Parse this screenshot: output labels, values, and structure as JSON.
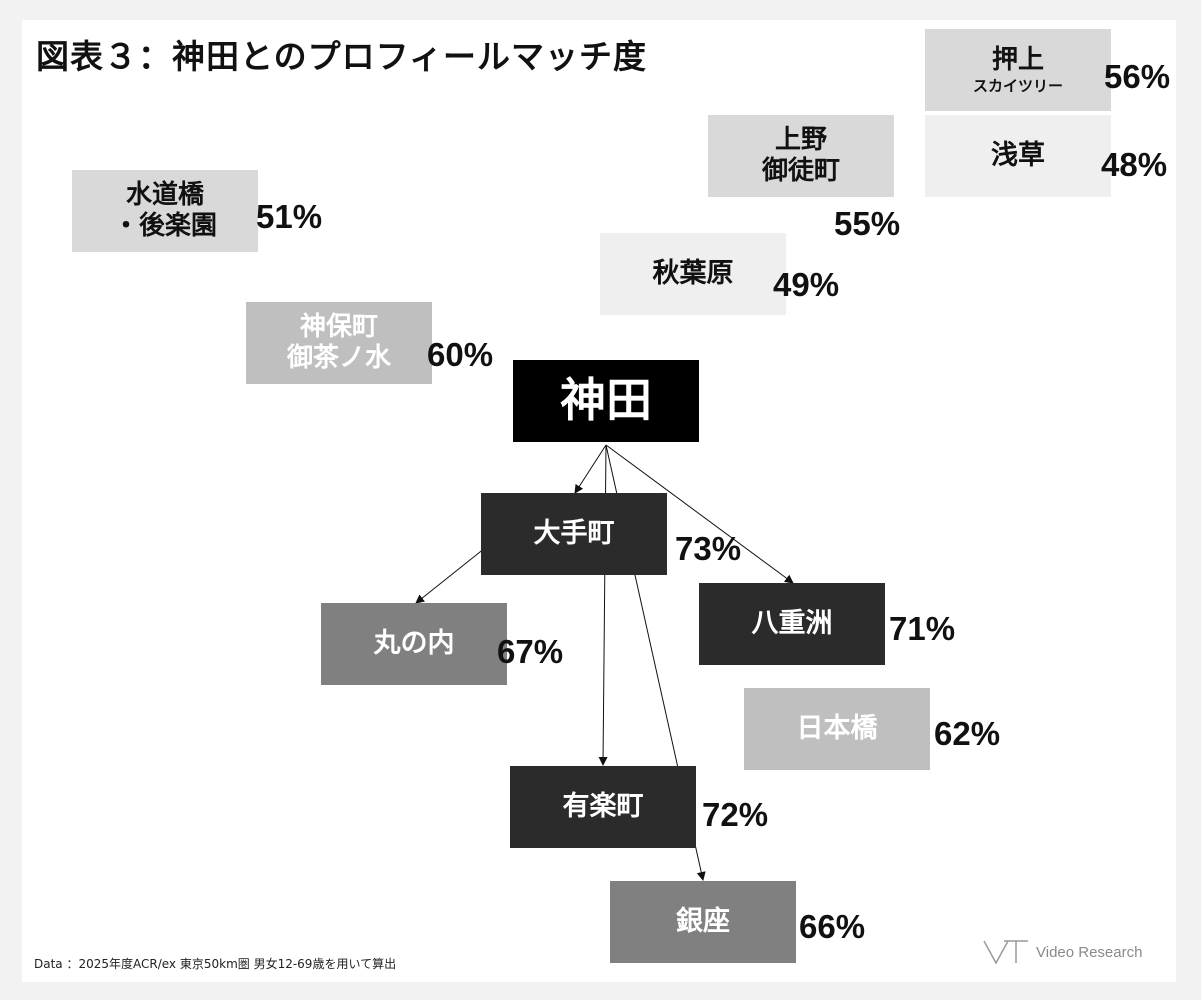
{
  "title": "図表３：神田とのプロフィールマッチ度",
  "center": {
    "label": "神田"
  },
  "colors": {
    "black": "#000000",
    "dark": "#2b2b2b",
    "mid": "#808080",
    "light_mid": "#bfbfbf",
    "light": "#d9d9d9",
    "lighter": "#efefef"
  },
  "stations": [
    {
      "id": "oshiage",
      "lines": [
        "押上",
        "スカイツリー"
      ],
      "percent": "56%"
    },
    {
      "id": "asakusa",
      "lines": [
        "浅草"
      ],
      "percent": "48%"
    },
    {
      "id": "ueno",
      "lines": [
        "上野",
        "御徒町"
      ],
      "percent": "55%"
    },
    {
      "id": "suidobashi",
      "lines": [
        "水道橋",
        "・後楽園"
      ],
      "percent": "51%"
    },
    {
      "id": "akihabara",
      "lines": [
        "秋葉原"
      ],
      "percent": "49%"
    },
    {
      "id": "jimbocho",
      "lines": [
        "神保町",
        "御茶ノ水"
      ],
      "percent": "60%"
    },
    {
      "id": "otemachi",
      "lines": [
        "大手町"
      ],
      "percent": "73%"
    },
    {
      "id": "yaesu",
      "lines": [
        "八重洲"
      ],
      "percent": "71%"
    },
    {
      "id": "marunouchi",
      "lines": [
        "丸の内"
      ],
      "percent": "67%"
    },
    {
      "id": "nihonbashi",
      "lines": [
        "日本橋"
      ],
      "percent": "62%"
    },
    {
      "id": "yurakucho",
      "lines": [
        "有楽町"
      ],
      "percent": "72%"
    },
    {
      "id": "ginza",
      "lines": [
        "銀座"
      ],
      "percent": "66%"
    }
  ],
  "footnote": "Data ：2025年度ACR/ex 東京50km圏 男女12-69歳を用いて算出",
  "logo": {
    "text": "Video Research"
  }
}
